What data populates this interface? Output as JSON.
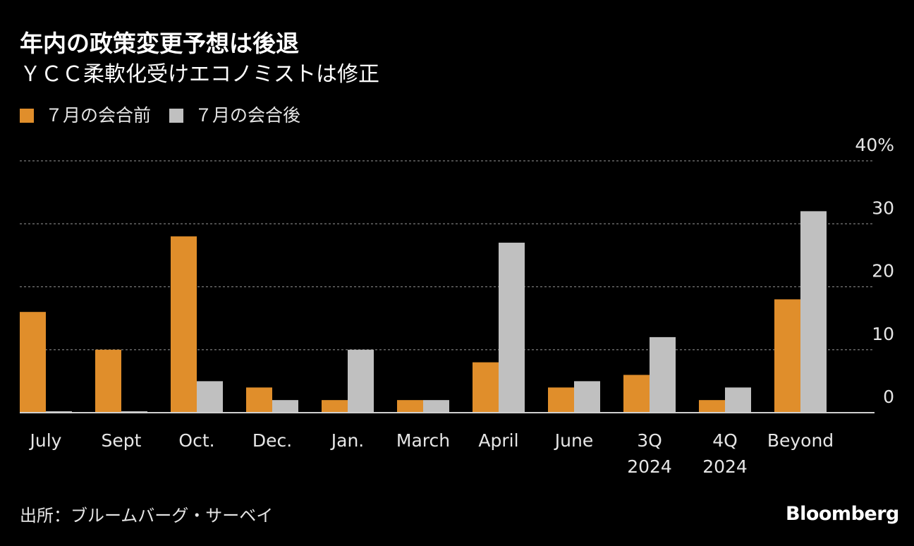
{
  "chart_data": {
    "type": "bar",
    "title": "年内の政策変更予想は後退",
    "subtitle": "ＹＣＣ柔軟化受けエコノミストは修正",
    "categories": [
      [
        "July"
      ],
      [
        "Sept"
      ],
      [
        "Oct."
      ],
      [
        "Dec."
      ],
      [
        "Jan."
      ],
      [
        "March"
      ],
      [
        "April"
      ],
      [
        "June"
      ],
      [
        "3Q",
        "2024"
      ],
      [
        "4Q",
        "2024"
      ],
      [
        "Beyond"
      ]
    ],
    "series": [
      {
        "name": "７月の会合前",
        "color": "#e08e2b",
        "values": [
          16,
          10,
          28,
          4,
          2,
          2,
          8,
          4,
          6,
          2,
          18
        ]
      },
      {
        "name": "７月の会合後",
        "color": "#c0c0c0",
        "values": [
          0,
          0,
          5,
          2,
          10,
          2,
          27,
          5,
          12,
          4,
          32
        ]
      }
    ],
    "y_ticks": [
      "40%",
      "30",
      "20",
      "10",
      "0"
    ],
    "ylim": [
      0,
      40
    ],
    "grid": true,
    "legend": "top-left",
    "source": "出所：ブルームバーグ・サーベイ",
    "brand": "Bloomberg"
  }
}
